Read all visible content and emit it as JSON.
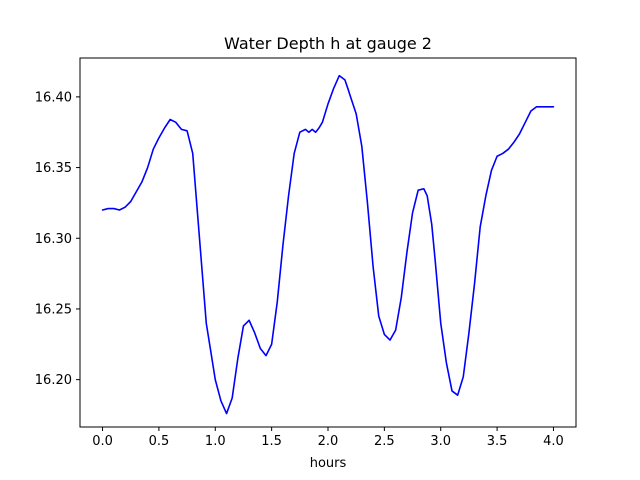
{
  "chart_data": {
    "type": "line",
    "title": "Water Depth h at gauge 2",
    "xlabel": "hours",
    "ylabel": "",
    "xlim": [
      -0.2,
      4.2
    ],
    "ylim": [
      16.1665,
      16.4275
    ],
    "xticks": [
      0.0,
      0.5,
      1.0,
      1.5,
      2.0,
      2.5,
      3.0,
      3.5,
      4.0
    ],
    "xtick_labels": [
      "0.0",
      "0.5",
      "1.0",
      "1.5",
      "2.0",
      "2.5",
      "3.0",
      "3.5",
      "4.0"
    ],
    "yticks": [
      16.2,
      16.25,
      16.3,
      16.35,
      16.4
    ],
    "ytick_labels": [
      "16.20",
      "16.25",
      "16.30",
      "16.35",
      "16.40"
    ],
    "grid": false,
    "series": [
      {
        "color": "#0000ff",
        "x": [
          0.0,
          0.05,
          0.1,
          0.15,
          0.2,
          0.25,
          0.3,
          0.35,
          0.4,
          0.45,
          0.5,
          0.55,
          0.6,
          0.65,
          0.7,
          0.75,
          0.8,
          0.85,
          0.88,
          0.92,
          0.95,
          1.0,
          1.05,
          1.1,
          1.15,
          1.2,
          1.25,
          1.3,
          1.35,
          1.4,
          1.45,
          1.5,
          1.55,
          1.6,
          1.65,
          1.7,
          1.75,
          1.8,
          1.83,
          1.86,
          1.89,
          1.92,
          1.95,
          2.0,
          2.05,
          2.1,
          2.15,
          2.18,
          2.2,
          2.25,
          2.3,
          2.35,
          2.4,
          2.45,
          2.5,
          2.55,
          2.6,
          2.65,
          2.7,
          2.75,
          2.8,
          2.85,
          2.88,
          2.92,
          2.95,
          3.0,
          3.05,
          3.1,
          3.15,
          3.2,
          3.25,
          3.3,
          3.35,
          3.4,
          3.45,
          3.5,
          3.55,
          3.6,
          3.65,
          3.7,
          3.75,
          3.8,
          3.85,
          3.9,
          3.95,
          4.0
        ],
        "y": [
          16.32,
          16.321,
          16.321,
          16.32,
          16.322,
          16.326,
          16.333,
          16.34,
          16.35,
          16.363,
          16.371,
          16.378,
          16.384,
          16.382,
          16.377,
          16.376,
          16.36,
          16.31,
          16.28,
          16.24,
          16.225,
          16.2,
          16.185,
          16.176,
          16.187,
          16.215,
          16.238,
          16.242,
          16.233,
          16.222,
          16.217,
          16.225,
          16.255,
          16.295,
          16.33,
          16.36,
          16.375,
          16.377,
          16.375,
          16.377,
          16.375,
          16.378,
          16.382,
          16.395,
          16.406,
          16.415,
          16.412,
          16.405,
          16.4,
          16.388,
          16.365,
          16.325,
          16.28,
          16.245,
          16.232,
          16.228,
          16.235,
          16.258,
          16.29,
          16.318,
          16.334,
          16.335,
          16.33,
          16.31,
          16.285,
          16.24,
          16.212,
          16.192,
          16.189,
          16.202,
          16.233,
          16.268,
          16.308,
          16.33,
          16.348,
          16.358,
          16.36,
          16.363,
          16.368,
          16.374,
          16.382,
          16.39,
          16.393,
          16.393,
          16.393,
          16.393
        ]
      }
    ]
  }
}
